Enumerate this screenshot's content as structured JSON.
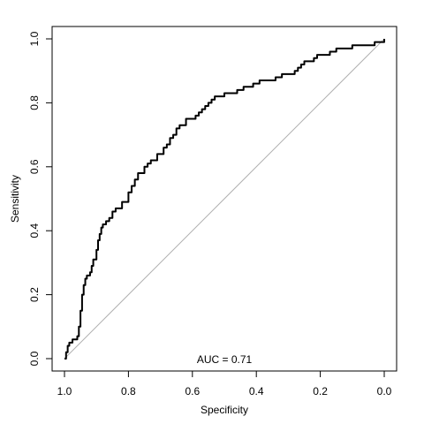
{
  "chart_data": {
    "type": "line",
    "title": "",
    "xlabel": "Specificity",
    "ylabel": "Sensitivity",
    "xlim": [
      1.0,
      0.0
    ],
    "ylim": [
      0.0,
      1.0
    ],
    "x_reversed": true,
    "xticks": [
      "1.0",
      "0.8",
      "0.6",
      "0.4",
      "0.2",
      "0.0"
    ],
    "yticks": [
      "0.0",
      "0.2",
      "0.4",
      "0.6",
      "0.8",
      "1.0"
    ],
    "grid": false,
    "legend": "none",
    "annotation": "AUC = 0.71",
    "reference_line": {
      "from": [
        1.0,
        0.0
      ],
      "to": [
        0.0,
        1.0
      ],
      "color": "#b0b0b0"
    },
    "series": [
      {
        "color": "#000000",
        "x": [
          1.0,
          0.995,
          0.99,
          0.985,
          0.975,
          0.96,
          0.955,
          0.95,
          0.945,
          0.94,
          0.935,
          0.93,
          0.92,
          0.915,
          0.91,
          0.9,
          0.895,
          0.89,
          0.885,
          0.88,
          0.87,
          0.86,
          0.85,
          0.845,
          0.84,
          0.83,
          0.82,
          0.8,
          0.79,
          0.78,
          0.77,
          0.76,
          0.75,
          0.74,
          0.73,
          0.72,
          0.71,
          0.7,
          0.69,
          0.68,
          0.67,
          0.66,
          0.65,
          0.64,
          0.63,
          0.62,
          0.61,
          0.6,
          0.59,
          0.58,
          0.57,
          0.56,
          0.55,
          0.54,
          0.53,
          0.51,
          0.5,
          0.49,
          0.48,
          0.46,
          0.45,
          0.44,
          0.42,
          0.41,
          0.4,
          0.39,
          0.38,
          0.36,
          0.34,
          0.32,
          0.3,
          0.28,
          0.27,
          0.26,
          0.25,
          0.24,
          0.22,
          0.21,
          0.2,
          0.19,
          0.17,
          0.16,
          0.15,
          0.12,
          0.1,
          0.09,
          0.07,
          0.05,
          0.04,
          0.03,
          0.02,
          0.0
        ],
        "y": [
          0.0,
          0.02,
          0.04,
          0.05,
          0.06,
          0.07,
          0.1,
          0.15,
          0.2,
          0.23,
          0.25,
          0.26,
          0.27,
          0.29,
          0.31,
          0.34,
          0.37,
          0.39,
          0.41,
          0.42,
          0.43,
          0.44,
          0.46,
          0.46,
          0.47,
          0.47,
          0.49,
          0.52,
          0.54,
          0.56,
          0.58,
          0.58,
          0.6,
          0.61,
          0.62,
          0.62,
          0.64,
          0.64,
          0.66,
          0.67,
          0.69,
          0.7,
          0.72,
          0.73,
          0.73,
          0.75,
          0.75,
          0.75,
          0.76,
          0.77,
          0.78,
          0.79,
          0.8,
          0.81,
          0.82,
          0.82,
          0.83,
          0.83,
          0.83,
          0.84,
          0.84,
          0.85,
          0.85,
          0.86,
          0.86,
          0.87,
          0.87,
          0.87,
          0.88,
          0.89,
          0.89,
          0.9,
          0.91,
          0.92,
          0.93,
          0.93,
          0.94,
          0.95,
          0.95,
          0.95,
          0.96,
          0.96,
          0.97,
          0.97,
          0.98,
          0.98,
          0.98,
          0.98,
          0.98,
          0.99,
          0.99,
          1.0
        ]
      }
    ]
  }
}
